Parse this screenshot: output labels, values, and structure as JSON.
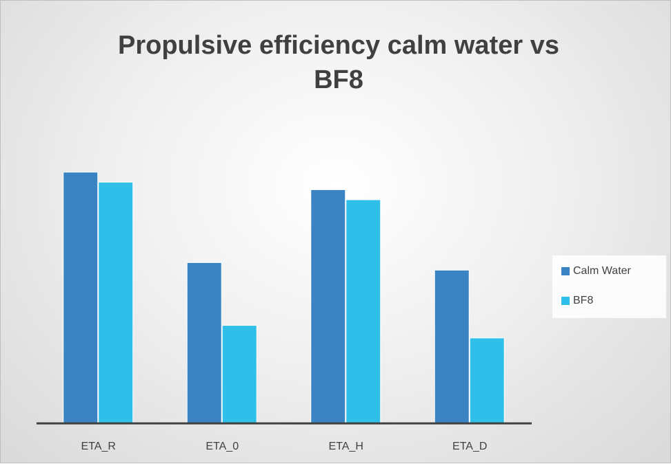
{
  "chart_data": {
    "type": "bar",
    "title": "Propulsive efficiency calm water vs BF8",
    "categories": [
      "ETA_R",
      "ETA_0",
      "ETA_H",
      "ETA_D"
    ],
    "series": [
      {
        "name": "Calm Water",
        "color": "#3a84c4",
        "values": [
          1.0,
          0.64,
          0.93,
          0.61
        ]
      },
      {
        "name": "BF8",
        "color": "#30bfe9",
        "values": [
          0.96,
          0.39,
          0.89,
          0.34
        ]
      }
    ],
    "ylim": [
      0,
      1.2
    ],
    "legend": "right"
  }
}
